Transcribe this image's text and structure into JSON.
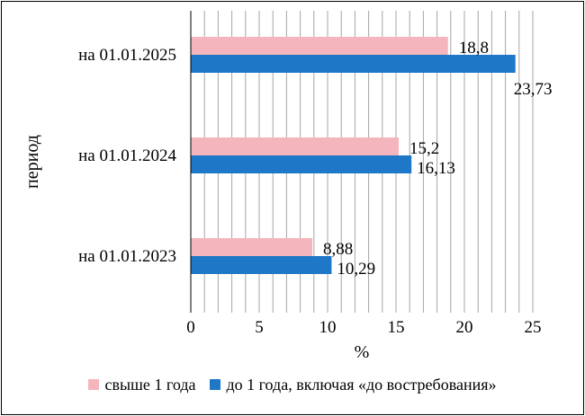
{
  "chart_data": {
    "type": "bar",
    "orientation": "horizontal",
    "categories": [
      "на 01.01.2025",
      "на 01.01.2024",
      "на 01.01.2023"
    ],
    "series": [
      {
        "name": "свыше 1 года",
        "color": "#F4B6BC",
        "values": [
          18.8,
          15.2,
          8.88
        ],
        "labels": [
          "18,8",
          "15,2",
          "8,88"
        ]
      },
      {
        "name": "до 1 года, включая «до востребования»",
        "color": "#1F77C8",
        "values": [
          23.73,
          16.13,
          10.29
        ],
        "labels": [
          "23,73",
          "16,13",
          "10,29"
        ]
      }
    ],
    "xlabel": "%",
    "ylabel": "период",
    "xlim": [
      0,
      25
    ],
    "xticks": [
      0,
      5,
      10,
      15,
      20,
      25
    ],
    "grid": "vertical",
    "legend_position": "bottom"
  }
}
